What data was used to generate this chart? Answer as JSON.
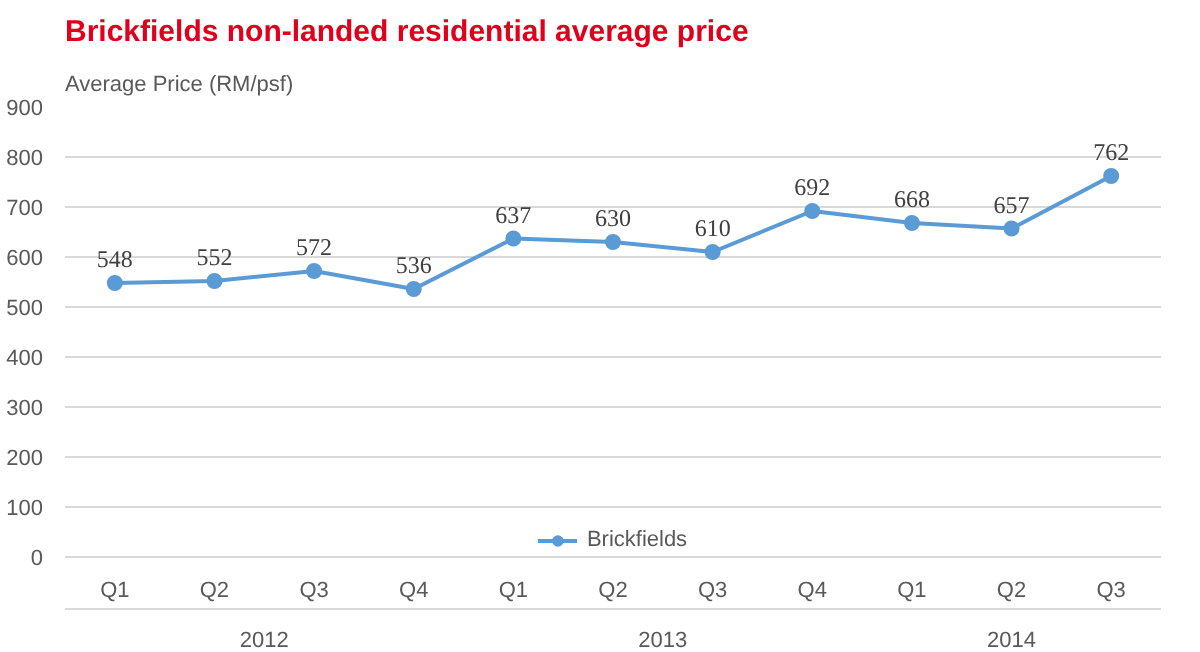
{
  "chart_data": {
    "type": "line",
    "title": "Brickfields non-landed residential average price",
    "ylabel": "Average Price (RM/psf)",
    "categories": [
      "Q1",
      "Q2",
      "Q3",
      "Q4",
      "Q1",
      "Q2",
      "Q3",
      "Q4",
      "Q1",
      "Q2",
      "Q3"
    ],
    "annotations": [
      "2012",
      "2013",
      "2014"
    ],
    "series": [
      {
        "name": "Brickfields",
        "color": "#5b9bd5",
        "values": [
          548,
          552,
          572,
          536,
          637,
          630,
          610,
          692,
          668,
          657,
          762
        ]
      }
    ],
    "ylim": [
      0,
      900
    ],
    "yticks": [
      0,
      100,
      200,
      300,
      400,
      500,
      600,
      700,
      800,
      900
    ],
    "grid": "y",
    "legend": "bottom",
    "marker": "circle",
    "line_style": "solid",
    "data_labels": true
  }
}
